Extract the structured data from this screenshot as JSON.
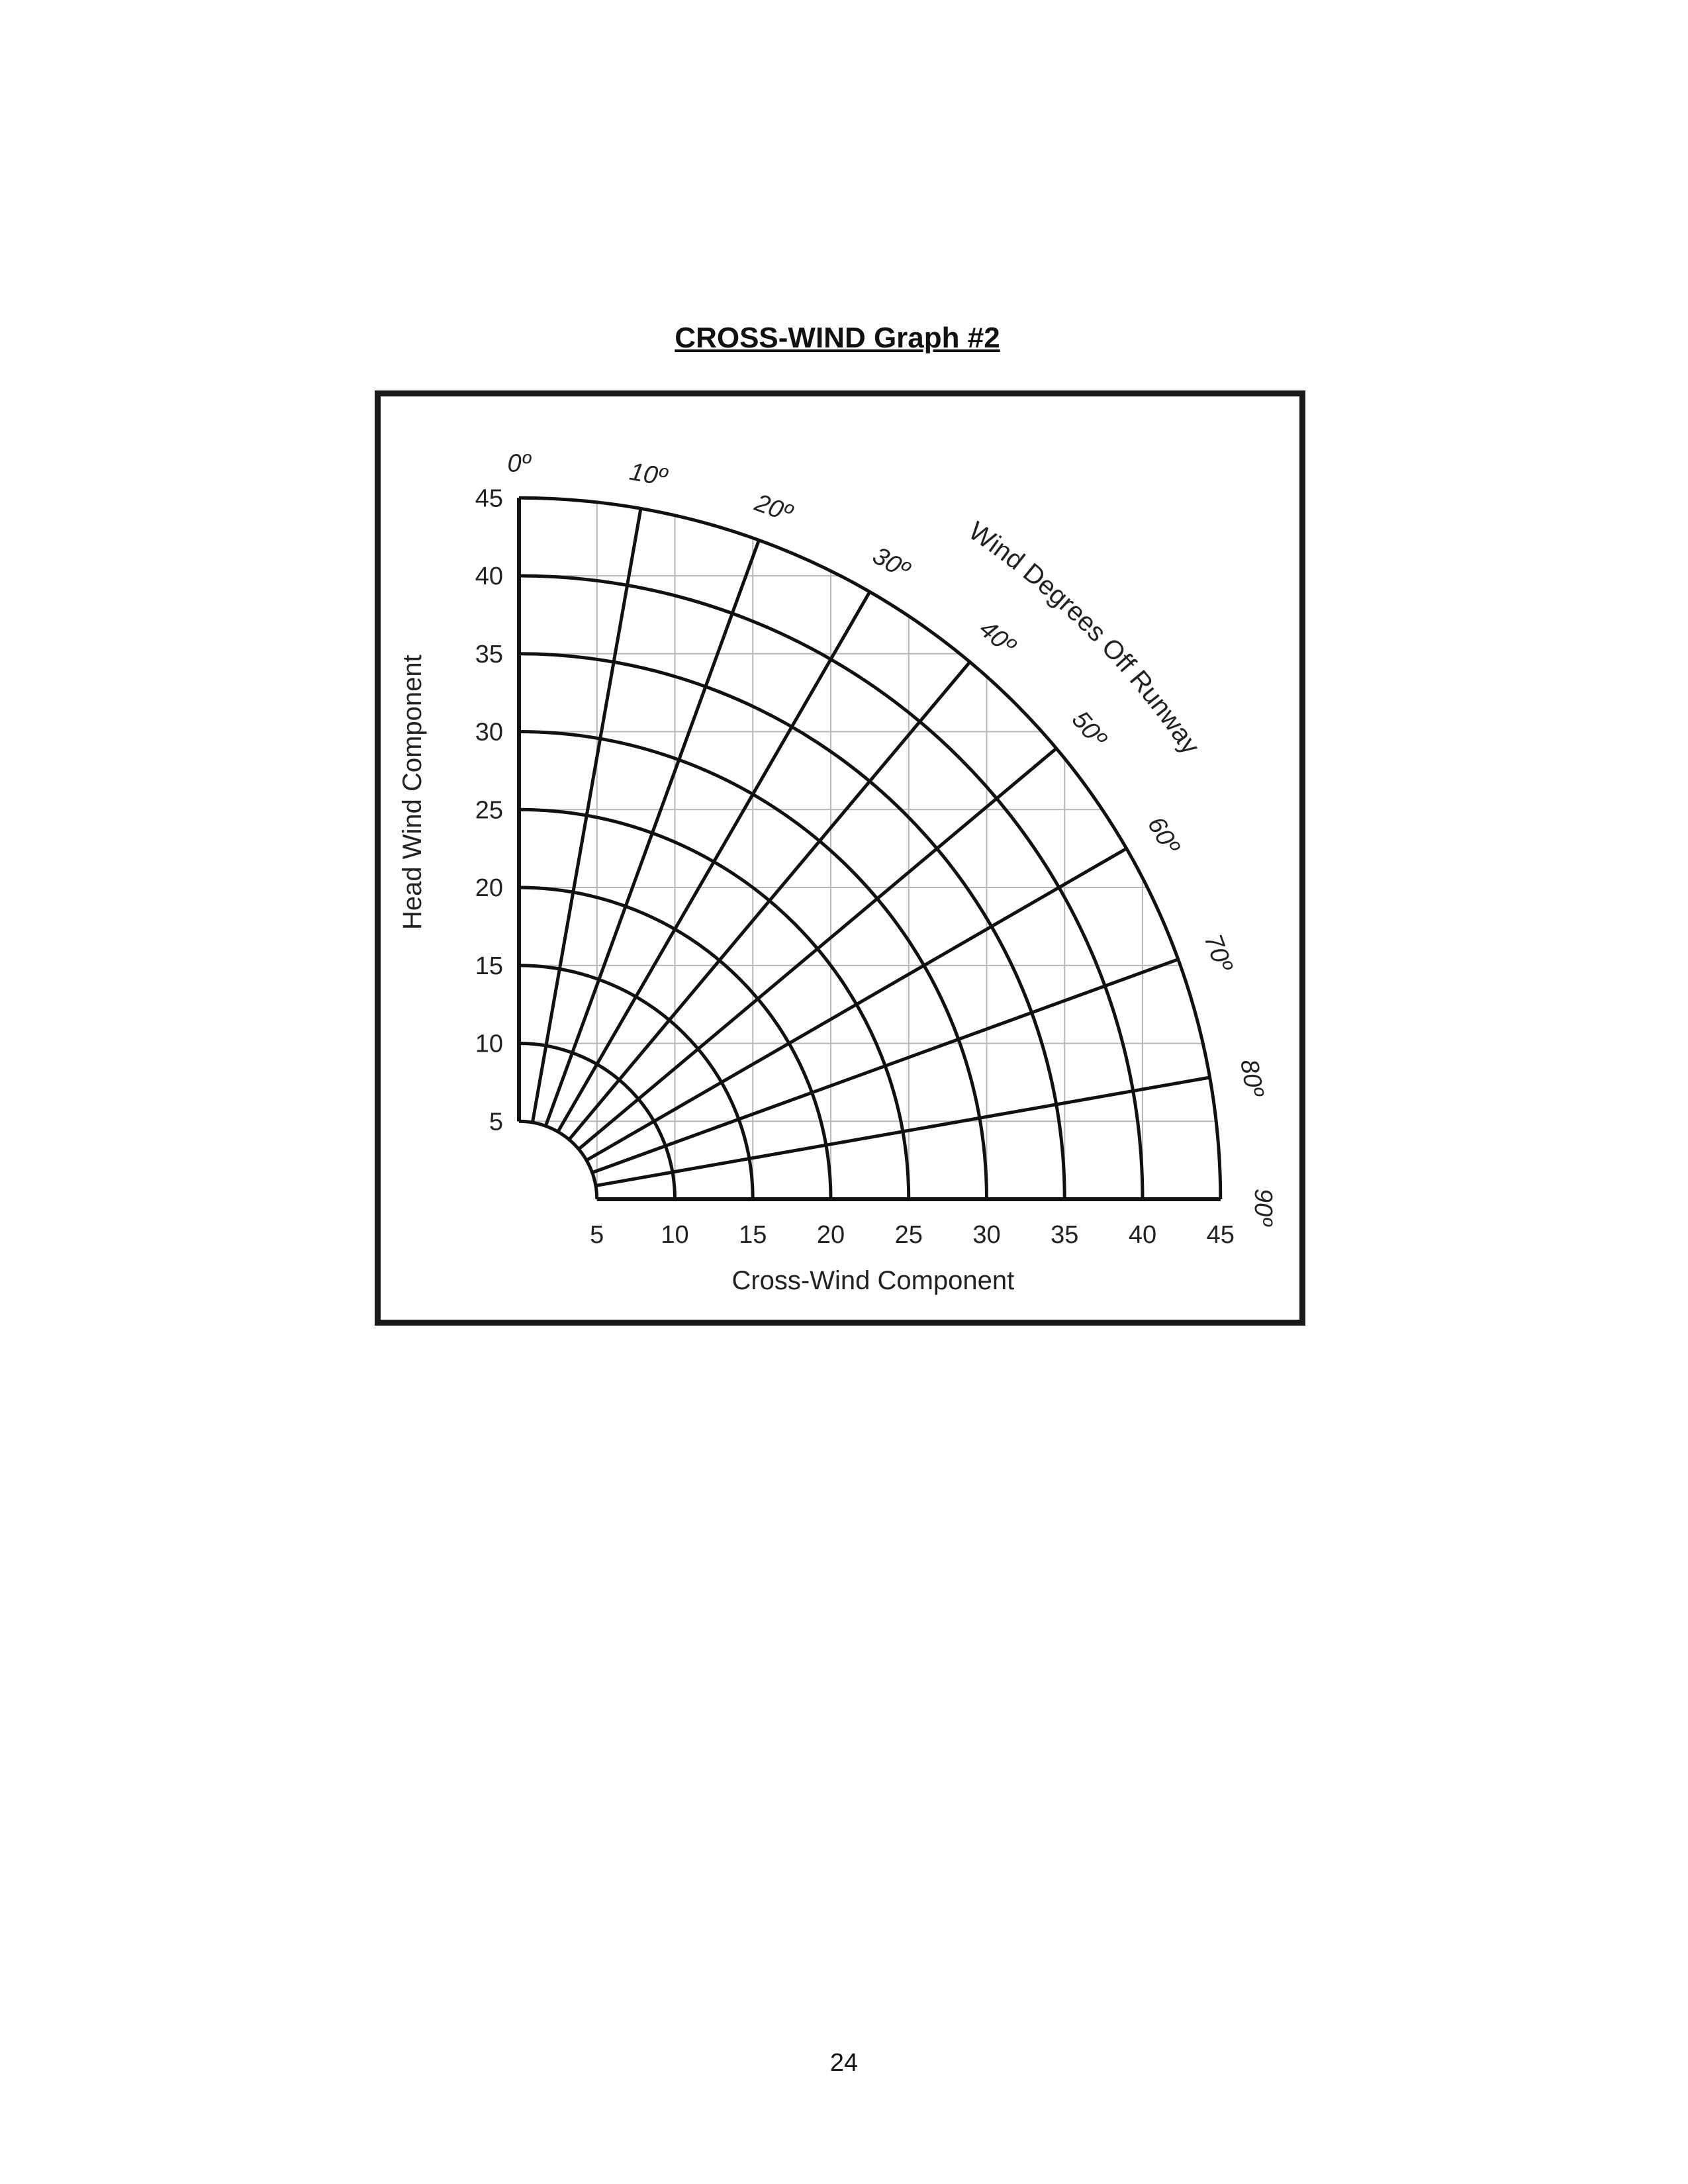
{
  "page": {
    "title": "CROSS-WIND  Graph #2",
    "page_number": "24"
  },
  "chart_data": {
    "type": "polar-wind-component",
    "title": "CROSS-WIND  Graph #2",
    "xlabel": "Cross-Wind Component",
    "ylabel": "Head Wind Component",
    "angle_axis_label": "Wind Degrees Off Runway",
    "xlim": [
      0,
      45
    ],
    "ylim": [
      0,
      45
    ],
    "x_ticks": [
      "5",
      "10",
      "15",
      "20",
      "25",
      "30",
      "35",
      "40",
      "45"
    ],
    "y_ticks": [
      "5",
      "10",
      "15",
      "20",
      "25",
      "30",
      "35",
      "40",
      "45"
    ],
    "wind_speed_arcs": [
      5,
      10,
      15,
      20,
      25,
      30,
      35,
      40,
      45
    ],
    "angle_lines_deg": [
      0,
      10,
      20,
      30,
      40,
      50,
      60,
      70,
      80,
      90
    ],
    "angle_labels": [
      "0º",
      "10º",
      "20º",
      "30º",
      "40º",
      "50º",
      "60º",
      "70º",
      "80º",
      "90º"
    ],
    "grid": true,
    "grid_step": 5
  }
}
